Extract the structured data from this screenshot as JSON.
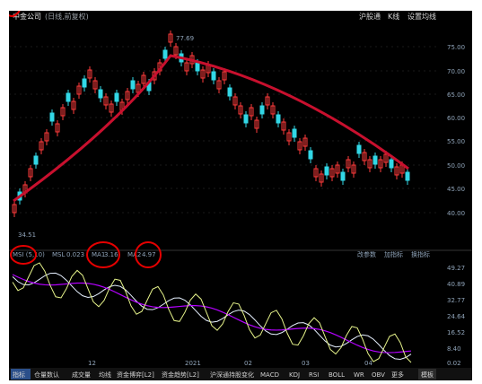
{
  "header": {
    "title": "中金公司",
    "subtitle": "(日线,前复权)",
    "right_items": [
      "沪股通",
      "K线",
      "设置均线"
    ]
  },
  "price_axis": [
    "75.00",
    "70.00",
    "65.00",
    "60.00",
    "55.00",
    "50.00",
    "45.00",
    "40.00"
  ],
  "price_annotations": {
    "high": "77.69",
    "low": "34.51"
  },
  "date_labels": [
    "12",
    "2021",
    "02",
    "03",
    "04"
  ],
  "indicator": {
    "prefix": "MSI (5,10)",
    "msi_label": "MSL",
    "msi_value": "0.023",
    "ma1_label": "MA1",
    "ma1_value": "3.16",
    "ma2_label": "MA2",
    "ma2_value": "4.97"
  },
  "indicator_right": [
    "改参数",
    "加指标",
    "换指标"
  ],
  "indicator_axis": [
    "49.27",
    "40.89",
    "32.77",
    "24.64",
    "16.52",
    "8.40",
    "0.02"
  ],
  "bottom_tabs": [
    "指标",
    "仓量数认",
    "成交量",
    "均线",
    "资金博弈[L2]",
    "资金趋势[L2]",
    "沪深通持股变化",
    "MACD",
    "KDJ",
    "RSI",
    "BOLL",
    "WR",
    "OBV",
    "更多"
  ],
  "bottom_right": "模板",
  "colors": {
    "up": "#ff3b3b",
    "down": "#32d7e6",
    "trend": "#c8102e",
    "ma1": "#e6f0ff",
    "ma2": "#b400ff",
    "annotation": "#e50000"
  }
}
